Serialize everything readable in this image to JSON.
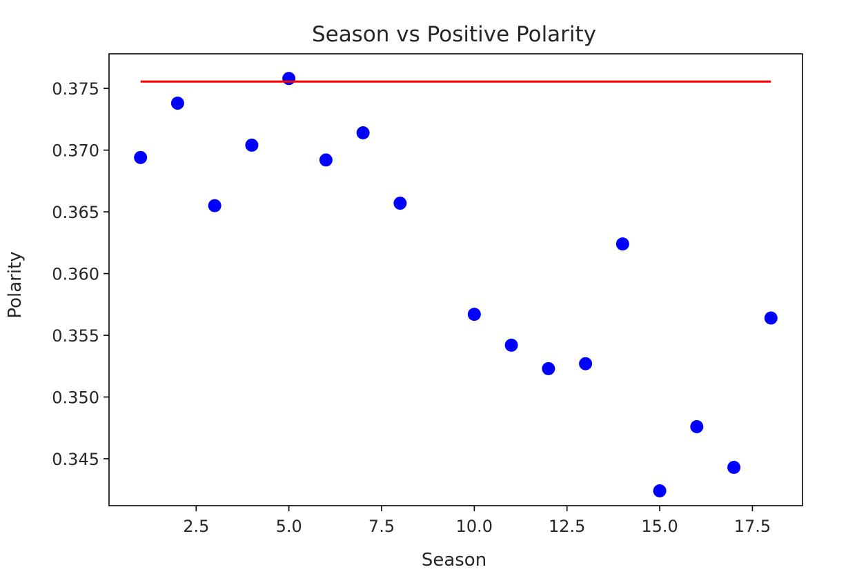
{
  "chart_data": {
    "type": "scatter",
    "title": "Season vs Positive Polarity",
    "xlabel": "Season",
    "ylabel": "Polarity",
    "xlim": [
      0.15,
      18.85
    ],
    "ylim": [
      0.3412,
      0.3778
    ],
    "xticks": [
      2.5,
      5.0,
      7.5,
      10.0,
      12.5,
      15.0,
      17.5
    ],
    "xtick_labels": [
      "2.5",
      "5.0",
      "7.5",
      "10.0",
      "12.5",
      "15.0",
      "17.5"
    ],
    "yticks": [
      0.345,
      0.35,
      0.355,
      0.36,
      0.365,
      0.37,
      0.375
    ],
    "ytick_labels": [
      "0.345",
      "0.350",
      "0.355",
      "0.360",
      "0.365",
      "0.370",
      "0.375"
    ],
    "grid": false,
    "series": [
      {
        "kind": "points",
        "color": "#0000ff",
        "x": [
          1,
          2,
          3,
          4,
          5,
          6,
          7,
          8,
          10,
          11,
          12,
          13,
          14,
          15,
          16,
          17,
          18
        ],
        "y": [
          0.3694,
          0.3738,
          0.3655,
          0.3704,
          0.3758,
          0.3692,
          0.3714,
          0.3657,
          0.3567,
          0.3542,
          0.3523,
          0.3527,
          0.3624,
          0.3424,
          0.3476,
          0.3443,
          0.3564
        ]
      },
      {
        "kind": "line",
        "color": "#ff0000",
        "x": [
          1,
          18
        ],
        "y": [
          0.37555,
          0.37555
        ]
      }
    ]
  }
}
